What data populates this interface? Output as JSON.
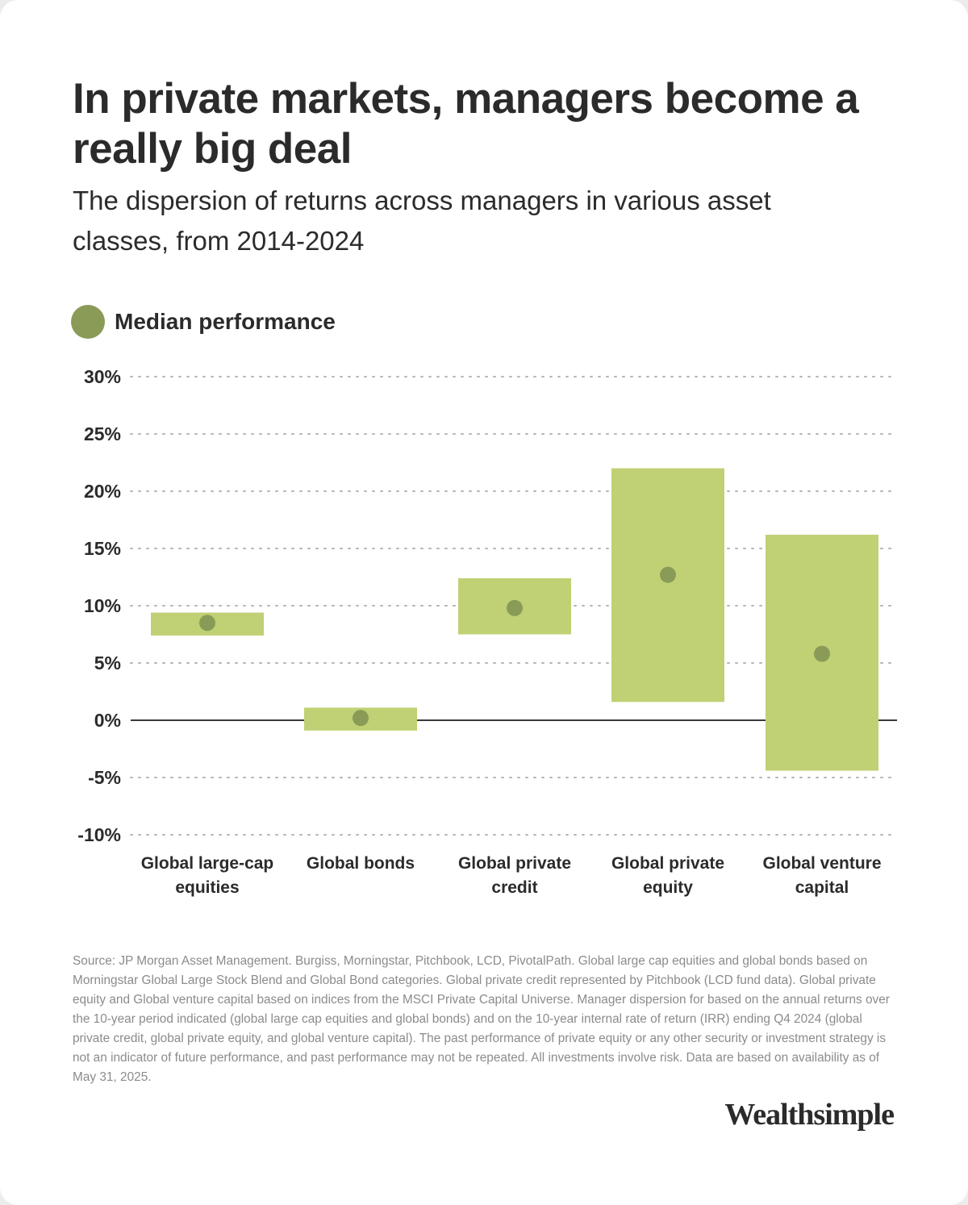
{
  "header": {
    "title": "In private markets, managers become a really big deal",
    "subtitle": "The dispersion of returns across managers in various asset classes, from 2014-2024"
  },
  "legend": {
    "label": "Median performance"
  },
  "colors": {
    "range_bar": "#bfd174",
    "median_dot": "#8a9b57",
    "text": "#2b2b2b",
    "grid": "#b5b5b5",
    "zero_line": "#3a3a3a"
  },
  "chart_data": {
    "type": "range",
    "title": "In private markets, managers become a really big deal",
    "subtitle": "The dispersion of returns across managers in various asset classes, from 2014-2024",
    "xlabel": "",
    "ylabel": "",
    "ylim": [
      -10,
      30
    ],
    "yticks": [
      30,
      25,
      20,
      15,
      10,
      5,
      0,
      -5,
      -10
    ],
    "ytick_labels": [
      "30%",
      "25%",
      "20%",
      "15%",
      "10%",
      "5%",
      "0%",
      "-5%",
      "-10%"
    ],
    "grid": "horizontal dotted",
    "legend": {
      "position": "top-left",
      "entries": [
        "Median performance"
      ]
    },
    "categories": [
      [
        "Global large-cap",
        "equities"
      ],
      [
        "Global bonds"
      ],
      [
        "Global private",
        "credit"
      ],
      [
        "Global private",
        "equity"
      ],
      [
        "Global venture",
        "capital"
      ]
    ],
    "ranges": [
      {
        "low": 7.4,
        "high": 9.4,
        "median": 8.5
      },
      {
        "low": -0.9,
        "high": 1.1,
        "median": 0.2
      },
      {
        "low": 7.5,
        "high": 12.4,
        "median": 9.8
      },
      {
        "low": 1.6,
        "high": 22.0,
        "median": 12.7
      },
      {
        "low": -4.4,
        "high": 16.2,
        "median": 5.8
      }
    ]
  },
  "footer": {
    "source": "Source: JP Morgan Asset Management. Burgiss, Morningstar, Pitchbook, LCD, PivotalPath. Global large cap equities and global bonds based on Morningstar Global Large Stock Blend and Global Bond categories. Global private credit represented by Pitchbook (LCD fund data). Global private equity and Global venture capital based on indices from the MSCI Private Capital Universe. Manager dispersion for based on the annual returns over the 10-year period indicated (global large cap equities and global bonds) and on the 10-year internal rate of return (IRR) ending Q4 2024 (global private credit, global private equity, and global venture capital). The past performance of private equity or any other security or investment strategy is not an indicator of future performance, and past performance may not be repeated. All investments involve risk. Data are based on availability as of May 31, 2025.",
    "brand": "Wealthsimple"
  }
}
